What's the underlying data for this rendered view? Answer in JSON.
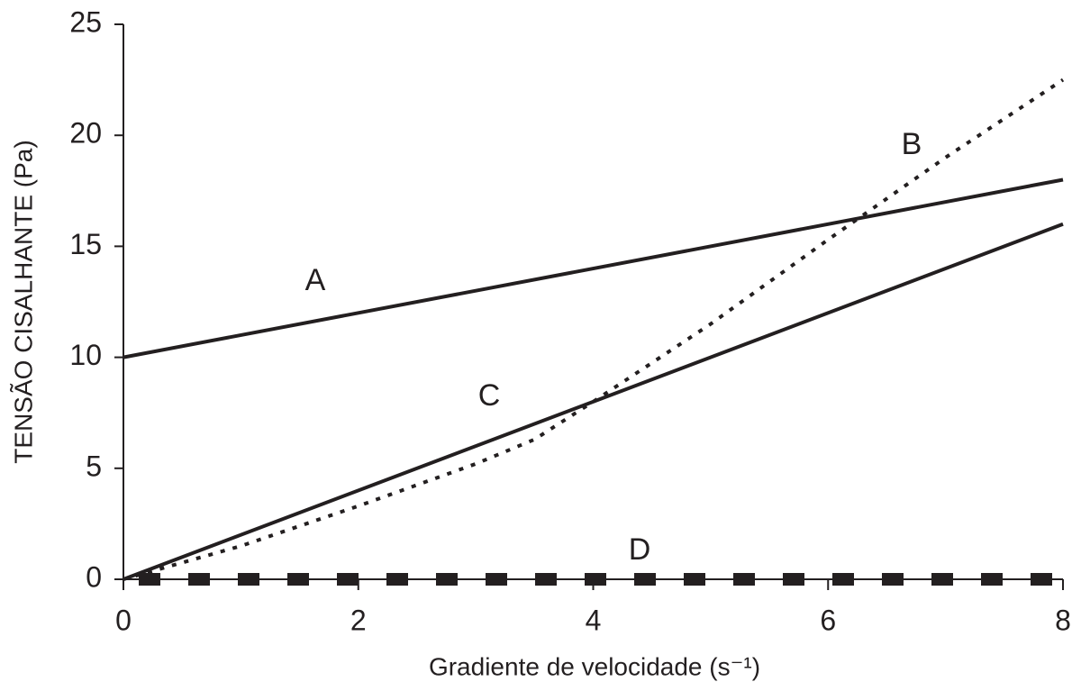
{
  "chart_data": {
    "type": "line",
    "x_label": "Gradiente de velocidade (s⁻¹)",
    "y_label": "TENSÃO CISALHANTE (Pa)",
    "xlim": [
      0,
      8
    ],
    "xticks": [
      0,
      2,
      4,
      6,
      8
    ],
    "ylim": [
      0,
      25
    ],
    "yticks": [
      0,
      5,
      10,
      15,
      20,
      25
    ],
    "grid": false,
    "series": [
      {
        "name": "A",
        "color": "#231f20",
        "style": "solid",
        "x": [
          0,
          8
        ],
        "values": [
          10,
          18
        ]
      },
      {
        "name": "B",
        "color": "#231f20",
        "style": "dotted",
        "x": [
          0,
          1,
          2,
          3,
          3.5,
          4,
          5,
          6,
          7,
          8
        ],
        "values": [
          0,
          1.5,
          3.3,
          5.2,
          6.3,
          8,
          11.5,
          15.3,
          19,
          22.5
        ]
      },
      {
        "name": "C",
        "color": "#231f20",
        "style": "solid",
        "x": [
          0,
          8
        ],
        "values": [
          0,
          16
        ]
      },
      {
        "name": "D",
        "color": "#231f20",
        "style": "dashed",
        "x": [
          0,
          8
        ],
        "values": [
          0,
          0
        ]
      }
    ]
  }
}
